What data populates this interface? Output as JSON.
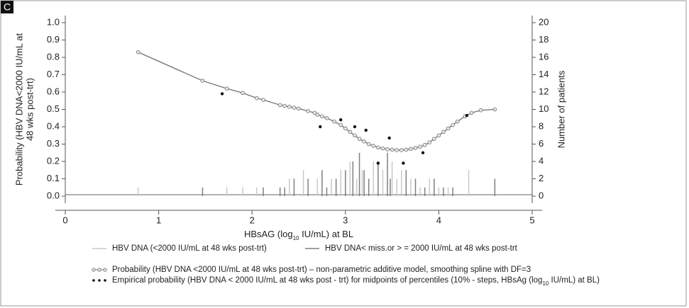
{
  "chart_data": {
    "type": "combo",
    "panel_label": "C",
    "xlabel": [
      "HBsAG (log",
      "10",
      " IU/mL) at BL"
    ],
    "ylabel": [
      "Probability (HBV DNA<2000 IU/mL at",
      "48 wks post-trt)"
    ],
    "y2label": "Number of patients",
    "xlim": [
      0,
      5
    ],
    "xticks": [
      0,
      1,
      2,
      3,
      4,
      5
    ],
    "ylim": [
      0,
      1
    ],
    "yticks": [
      {
        "value": 0,
        "label": "0.0"
      },
      0.1,
      0.2,
      0.3,
      0.4,
      0.5,
      0.6,
      0.7,
      0.8,
      0.9,
      {
        "value": 1,
        "label": "1.0"
      }
    ],
    "y2lim": [
      0,
      20
    ],
    "y2ticks": [
      0,
      2,
      4,
      6,
      8,
      10,
      12,
      14,
      16,
      18,
      20
    ],
    "legend": "bottom",
    "series": [
      {
        "name": "HBV DNA (<2000 IU/mL at 48 wks post-trt)",
        "type": "bar",
        "axis": "y2",
        "color": "#c9c9c9",
        "x": [
          0.78,
          1.73,
          1.9,
          2.05,
          2.4,
          2.55,
          2.7,
          2.85,
          2.95,
          3.05,
          3.12,
          3.18,
          3.3,
          3.4,
          3.5,
          3.55,
          3.6,
          3.7,
          3.8,
          3.9,
          4.0,
          4.1,
          4.32
        ],
        "values": [
          1,
          1,
          1,
          1,
          2,
          3,
          2,
          2,
          3,
          4,
          2,
          3,
          4,
          3,
          4,
          2,
          3,
          2,
          1,
          2,
          1,
          1,
          3
        ]
      },
      {
        "name": "HBV DNA< miss.or > = 2000 IU/mL at 48 wks post-trt",
        "type": "bar",
        "axis": "y2",
        "color": "#7f7f7f",
        "x": [
          1.47,
          2.12,
          2.3,
          2.35,
          2.45,
          2.6,
          2.75,
          2.8,
          2.9,
          3.0,
          3.08,
          3.15,
          3.2,
          3.25,
          3.35,
          3.45,
          3.48,
          3.65,
          3.75,
          3.85,
          3.95,
          4.05,
          4.15,
          4.6
        ],
        "values": [
          1,
          1,
          1,
          1,
          2,
          2,
          3,
          1,
          2,
          3,
          4,
          5,
          3,
          2,
          4,
          5,
          2,
          3,
          2,
          1,
          2,
          1,
          1,
          2
        ]
      },
      {
        "name": "Probability (HBV DNA <2000 IU/mL at 48 wks post-trt) – non-parametric additive model, smoothing spline with DF=3",
        "type": "line",
        "color": "#707070",
        "x": [
          0.78,
          1.47,
          1.73,
          1.9,
          2.05,
          2.12,
          2.3,
          2.35,
          2.4,
          2.45,
          2.5,
          2.6,
          2.67,
          2.7,
          2.75,
          2.8,
          2.88,
          2.95,
          3.0,
          3.05,
          3.1,
          3.15,
          3.2,
          3.25,
          3.3,
          3.35,
          3.4,
          3.45,
          3.5,
          3.55,
          3.6,
          3.65,
          3.7,
          3.75,
          3.8,
          3.85,
          3.9,
          3.95,
          4.0,
          4.05,
          4.1,
          4.15,
          4.2,
          4.28,
          4.35,
          4.45,
          4.6
        ],
        "values": [
          0.83,
          0.665,
          0.62,
          0.595,
          0.565,
          0.555,
          0.525,
          0.52,
          0.515,
          0.51,
          0.505,
          0.49,
          0.48,
          0.47,
          0.46,
          0.45,
          0.43,
          0.41,
          0.39,
          0.37,
          0.35,
          0.33,
          0.315,
          0.3,
          0.29,
          0.28,
          0.275,
          0.27,
          0.268,
          0.265,
          0.265,
          0.268,
          0.272,
          0.278,
          0.285,
          0.295,
          0.31,
          0.33,
          0.35,
          0.37,
          0.39,
          0.41,
          0.43,
          0.46,
          0.48,
          0.495,
          0.5
        ]
      },
      {
        "name": [
          "Empirical probability (HBV DNA < 2000 IU/mL at 48 wks post - trt) for midpoints of percentiles (10% - steps, HBsAg (log",
          "10",
          " IU/mL) at BL)"
        ],
        "type": "scatter",
        "color": "#111111",
        "x": [
          1.68,
          2.73,
          2.95,
          3.1,
          3.22,
          3.35,
          3.47,
          3.62,
          3.83,
          4.3
        ],
        "values": [
          0.59,
          0.4,
          0.44,
          0.4,
          0.38,
          0.19,
          0.335,
          0.19,
          0.25,
          0.465
        ]
      }
    ]
  }
}
